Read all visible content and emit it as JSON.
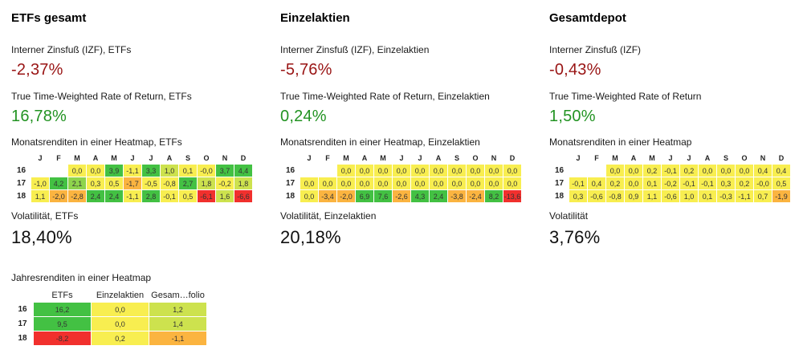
{
  "panels": [
    {
      "title": "ETFs gesamt",
      "izf_label": "Interner Zinsfuß (IZF), ETFs",
      "izf_value": "-2,37%",
      "ttwror_label": "True Time-Weighted Rate of Return, ETFs",
      "ttwror_value": "16,78%",
      "heatmap_label": "Monatsrenditen in einer Heatmap, ETFs",
      "vol_label": "Volatilität, ETFs",
      "vol_value": "18,40%",
      "year_label": "Jahresrenditen in einer Heatmap"
    },
    {
      "title": "Einzelaktien",
      "izf_label": "Interner Zinsfuß (IZF), Einzelaktien",
      "izf_value": "-5,76%",
      "ttwror_label": "True Time-Weighted Rate of Return, Einzelaktien",
      "ttwror_value": "0,24%",
      "heatmap_label": "Monatsrenditen in einer Heatmap, Einzelaktien",
      "vol_label": "Volatilität, Einzelaktien",
      "vol_value": "20,18%"
    },
    {
      "title": "Gesamtdepot",
      "izf_label": "Interner Zinsfuß (IZF)",
      "izf_value": "-0,43%",
      "ttwror_label": "True Time-Weighted Rate of Return",
      "ttwror_value": "1,50%",
      "heatmap_label": "Monatsrenditen in einer Heatmap",
      "vol_label": "Volatilität",
      "vol_value": "3,76%"
    }
  ],
  "colors": {
    "kpi_negative": "#991414",
    "kpi_positive": "#229322",
    "kpi_neutral": "#111111",
    "palette": {
      "g": "#43c143",
      "lg": "#8ed44c",
      "yg": "#cde24e",
      "y": "#f8ee50",
      "o": "#fbb440",
      "r": "#f1302d"
    }
  },
  "chart_data": [
    {
      "type": "heatmap",
      "title": "Monatsrenditen in einer Heatmap, ETFs",
      "columns": [
        "J",
        "F",
        "M",
        "A",
        "M",
        "J",
        "J",
        "A",
        "S",
        "O",
        "N",
        "D"
      ],
      "row_labels": [
        "16",
        "17",
        "18"
      ],
      "cells": [
        [
          "",
          "",
          "0,0",
          "0,0",
          "3,9",
          "-1,1",
          "3,3",
          "1,0",
          "0,1",
          "-0,0",
          "3,7",
          "4,4"
        ],
        [
          "-1,0",
          "4,2",
          "2,1",
          "0,3",
          "0,5",
          "-1,7",
          "-0,5",
          "-0,8",
          "2,7",
          "1,8",
          "-0,2",
          "1,8"
        ],
        [
          "1,1",
          "-2,0",
          "-2,8",
          "2,4",
          "2,4",
          "-1,1",
          "2,8",
          "-0,1",
          "0,5",
          "-6,1",
          "1,6",
          "-6,6"
        ]
      ],
      "colors": [
        [
          "",
          "",
          "y",
          "y",
          "g",
          "y",
          "g",
          "yg",
          "y",
          "y",
          "g",
          "g"
        ],
        [
          "y",
          "g",
          "lg",
          "y",
          "y",
          "o",
          "y",
          "y",
          "g",
          "yg",
          "y",
          "yg"
        ],
        [
          "y",
          "o",
          "o",
          "g",
          "g",
          "y",
          "g",
          "y",
          "y",
          "r",
          "yg",
          "r"
        ]
      ]
    },
    {
      "type": "heatmap",
      "title": "Monatsrenditen in einer Heatmap, Einzelaktien",
      "columns": [
        "J",
        "F",
        "M",
        "A",
        "M",
        "J",
        "J",
        "A",
        "S",
        "O",
        "N",
        "D"
      ],
      "row_labels": [
        "16",
        "17",
        "18"
      ],
      "cells": [
        [
          "",
          "",
          "0,0",
          "0,0",
          "0,0",
          "0,0",
          "0,0",
          "0,0",
          "0,0",
          "0,0",
          "0,0",
          "0,0"
        ],
        [
          "0,0",
          "0,0",
          "0,0",
          "0,0",
          "0,0",
          "0,0",
          "0,0",
          "0,0",
          "0,0",
          "0,0",
          "0,0",
          "0,0"
        ],
        [
          "0,0",
          "-3,4",
          "-2,0",
          "6,9",
          "7,6",
          "-2,6",
          "4,3",
          "2,4",
          "-3,8",
          "-2,4",
          "8,2",
          "-13,6"
        ]
      ],
      "colors": [
        [
          "",
          "",
          "y",
          "y",
          "y",
          "y",
          "y",
          "y",
          "y",
          "y",
          "y",
          "y"
        ],
        [
          "y",
          "y",
          "y",
          "y",
          "y",
          "y",
          "y",
          "y",
          "y",
          "y",
          "y",
          "y"
        ],
        [
          "y",
          "o",
          "o",
          "g",
          "g",
          "o",
          "g",
          "g",
          "o",
          "o",
          "g",
          "r"
        ]
      ]
    },
    {
      "type": "heatmap",
      "title": "Monatsrenditen in einer Heatmap",
      "columns": [
        "J",
        "F",
        "M",
        "A",
        "M",
        "J",
        "J",
        "A",
        "S",
        "O",
        "N",
        "D"
      ],
      "row_labels": [
        "16",
        "17",
        "18"
      ],
      "cells": [
        [
          "",
          "",
          "0,0",
          "0,0",
          "0,2",
          "-0,1",
          "0,2",
          "0,0",
          "0,0",
          "0,0",
          "0,4",
          "0,4"
        ],
        [
          "-0,1",
          "0,4",
          "0,2",
          "0,0",
          "0,1",
          "-0,2",
          "-0,1",
          "-0,1",
          "0,3",
          "0,2",
          "-0,0",
          "0,5"
        ],
        [
          "0,3",
          "-0,6",
          "-0,8",
          "0,9",
          "1,1",
          "-0,6",
          "1,0",
          "0,1",
          "-0,3",
          "-1,1",
          "0,7",
          "-1,9"
        ]
      ],
      "colors": [
        [
          "",
          "",
          "y",
          "y",
          "y",
          "y",
          "y",
          "y",
          "y",
          "y",
          "y",
          "y"
        ],
        [
          "y",
          "y",
          "y",
          "y",
          "y",
          "y",
          "y",
          "y",
          "y",
          "y",
          "y",
          "y"
        ],
        [
          "y",
          "y",
          "y",
          "y",
          "y",
          "y",
          "y",
          "y",
          "y",
          "y",
          "y",
          "o"
        ]
      ]
    },
    {
      "type": "heatmap",
      "title": "Jahresrenditen in einer Heatmap",
      "columns": [
        "ETFs",
        "Einzelaktien",
        "Gesam…folio"
      ],
      "row_labels": [
        "16",
        "17",
        "18"
      ],
      "cells": [
        [
          "16,2",
          "0,0",
          "1,2"
        ],
        [
          "9,5",
          "0,0",
          "1,4"
        ],
        [
          "-8,2",
          "0,2",
          "-1,1"
        ]
      ],
      "colors": [
        [
          "g",
          "y",
          "yg"
        ],
        [
          "g",
          "y",
          "yg"
        ],
        [
          "r",
          "y",
          "o"
        ]
      ]
    }
  ]
}
